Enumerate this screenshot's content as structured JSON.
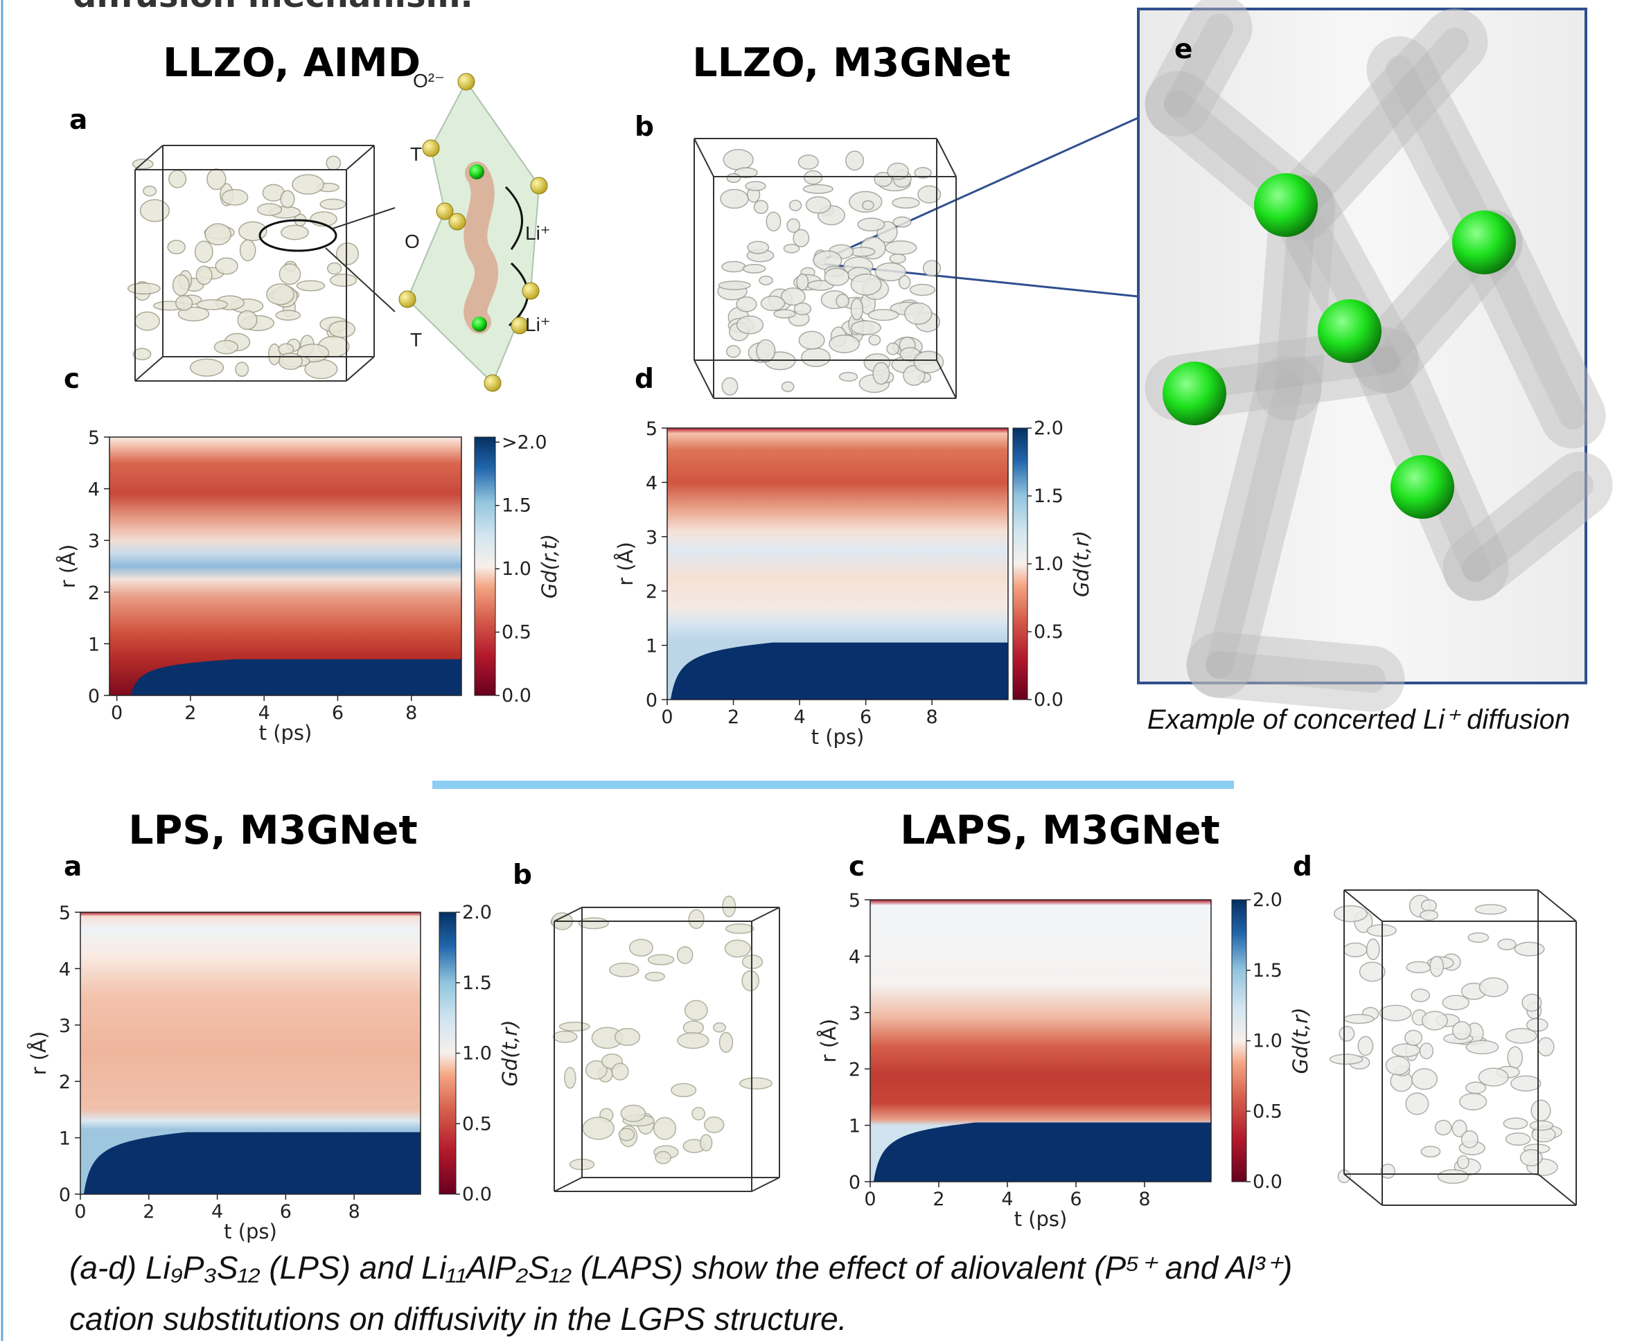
{
  "header_fragment": "diffusion mechanism.",
  "top": {
    "titles": [
      "LLZO, AIMD",
      "LLZO, M3GNet"
    ],
    "panel_labels": [
      "a",
      "b",
      "c",
      "d",
      "e"
    ],
    "structure_annotations": [
      "O²⁻",
      "T",
      "O",
      "Li⁺",
      "Li⁺",
      "T"
    ],
    "caption_e": "Example of concerted Li⁺ diffusion"
  },
  "bottom": {
    "titles": [
      "LPS, M3GNet",
      "LAPS, M3GNet"
    ],
    "panel_labels": [
      "a",
      "b",
      "c",
      "d"
    ],
    "caption": [
      "(a-d) Li₉P₃S₁₂ (LPS) and Li₁₁AlP₂S₁₂ (LAPS) show the effect of aliovalent (P⁵⁺ and Al³⁺)",
      "cation substitutions on diffusivity in the LGPS structure."
    ]
  },
  "chart_data": [
    {
      "type": "heatmap",
      "xlabel": "t (ps)",
      "ylabel": "r (Å)",
      "xlim": [
        -0.2,
        9.36
      ],
      "ylim": [
        0,
        5
      ],
      "xticks": [
        0,
        2,
        4,
        6,
        8
      ],
      "yticks": [
        0,
        1,
        2,
        3,
        4,
        5
      ],
      "colorbar": {
        "label": "Gd(r,t)",
        "lim": [
          0,
          2.04
        ],
        "ticks": [
          {
            "value": 0,
            "label": "0.0"
          },
          {
            "value": 0.5,
            "label": "0.5"
          },
          {
            "value": 1,
            "label": "1.0"
          },
          {
            "value": 1.5,
            "label": "1.5"
          },
          {
            "value": 2,
            "label": ">2.0"
          }
        ]
      }
    },
    {
      "type": "heatmap",
      "xlabel": "t (ps)",
      "ylabel": "r (Å)",
      "xlim": [
        0,
        10.3
      ],
      "ylim": [
        0,
        5
      ],
      "xticks": [
        0,
        2,
        4,
        6,
        8
      ],
      "yticks": [
        0,
        1,
        2,
        3,
        4,
        5
      ],
      "colorbar": {
        "label": "Gd(t,r)",
        "lim": [
          0,
          2
        ],
        "ticks": [
          {
            "value": 0,
            "label": "0.0"
          },
          {
            "value": 0.5,
            "label": "0.5"
          },
          {
            "value": 1,
            "label": "1.0"
          },
          {
            "value": 1.5,
            "label": "1.5"
          },
          {
            "value": 2,
            "label": "2.0"
          }
        ]
      }
    },
    {
      "type": "heatmap",
      "xlabel": "t (ps)",
      "ylabel": "r (Å)",
      "xlim": [
        0,
        9.94
      ],
      "ylim": [
        0,
        5
      ],
      "xticks": [
        0,
        2,
        4,
        6,
        8
      ],
      "yticks": [
        0,
        1,
        2,
        3,
        4,
        5
      ],
      "colorbar": {
        "label": "Gd(t,r)",
        "lim": [
          0,
          2
        ],
        "ticks": [
          {
            "value": 0,
            "label": "0.0"
          },
          {
            "value": 0.5,
            "label": "0.5"
          },
          {
            "value": 1,
            "label": "1.0"
          },
          {
            "value": 1.5,
            "label": "1.5"
          },
          {
            "value": 2,
            "label": "2.0"
          }
        ]
      }
    },
    {
      "type": "heatmap",
      "xlabel": "t (ps)",
      "ylabel": "r (Å)",
      "xlim": [
        0,
        9.94
      ],
      "ylim": [
        0,
        5
      ],
      "xticks": [
        0,
        2,
        4,
        6,
        8
      ],
      "yticks": [
        0,
        1,
        2,
        3,
        4,
        5
      ],
      "colorbar": {
        "label": "Gd(t,r)",
        "lim": [
          0,
          2
        ],
        "ticks": [
          {
            "value": 0,
            "label": "0.0"
          },
          {
            "value": 0.5,
            "label": "0.5"
          },
          {
            "value": 1,
            "label": "1.0"
          },
          {
            "value": 1.5,
            "label": "1.5"
          },
          {
            "value": 2,
            "label": "2.0"
          }
        ]
      }
    }
  ]
}
